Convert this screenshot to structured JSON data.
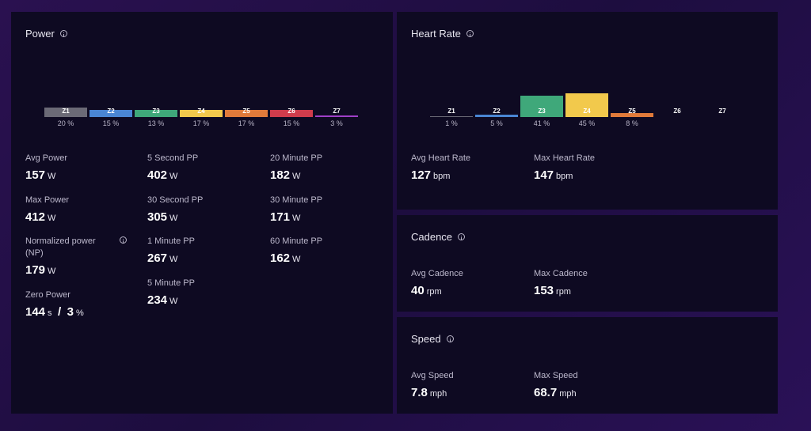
{
  "power": {
    "title": "Power",
    "zones": [
      {
        "label": "Z1",
        "pct": "20 %",
        "color": "#6b6a76"
      },
      {
        "label": "Z2",
        "pct": "15 %",
        "color": "#4a86d4"
      },
      {
        "label": "Z3",
        "pct": "13 %",
        "color": "#3fa87a"
      },
      {
        "label": "Z4",
        "pct": "17 %",
        "color": "#f2c94c"
      },
      {
        "label": "Z5",
        "pct": "17 %",
        "color": "#e07a3a"
      },
      {
        "label": "Z6",
        "pct": "15 %",
        "color": "#d03c4c"
      },
      {
        "label": "Z7",
        "pct": "3 %",
        "color": "#a040c8"
      }
    ],
    "stats": {
      "avg_power": {
        "label": "Avg Power",
        "value": "157",
        "unit": "W"
      },
      "max_power": {
        "label": "Max Power",
        "value": "412",
        "unit": "W"
      },
      "np": {
        "label": "Normalized power (NP)",
        "value": "179",
        "unit": "W"
      },
      "zero_power": {
        "label": "Zero Power",
        "value": "144",
        "unit": "s",
        "sep": "/",
        "value2": "3",
        "unit2": "%"
      },
      "pp_5s": {
        "label": "5 Second PP",
        "value": "402",
        "unit": "W"
      },
      "pp_30s": {
        "label": "30 Second PP",
        "value": "305",
        "unit": "W"
      },
      "pp_1m": {
        "label": "1 Minute PP",
        "value": "267",
        "unit": "W"
      },
      "pp_5m": {
        "label": "5 Minute PP",
        "value": "234",
        "unit": "W"
      },
      "pp_20m": {
        "label": "20 Minute PP",
        "value": "182",
        "unit": "W"
      },
      "pp_30m": {
        "label": "30 Minute PP",
        "value": "171",
        "unit": "W"
      },
      "pp_60m": {
        "label": "60 Minute PP",
        "value": "162",
        "unit": "W"
      }
    }
  },
  "heart_rate": {
    "title": "Heart Rate",
    "zones": [
      {
        "label": "Z1",
        "pct": "1 %",
        "value": 1,
        "color": "#6b6a76"
      },
      {
        "label": "Z2",
        "pct": "5 %",
        "value": 5,
        "color": "#4a86d4"
      },
      {
        "label": "Z3",
        "pct": "41 %",
        "value": 41,
        "color": "#3fa87a"
      },
      {
        "label": "Z4",
        "pct": "45 %",
        "value": 45,
        "color": "#f2c94c"
      },
      {
        "label": "Z5",
        "pct": "8 %",
        "value": 8,
        "color": "#e07a3a"
      },
      {
        "label": "Z6",
        "pct": "",
        "value": 0,
        "color": "#d03c4c"
      },
      {
        "label": "Z7",
        "pct": "",
        "value": 0,
        "color": "#a040c8"
      }
    ],
    "stats": {
      "avg_hr": {
        "label": "Avg Heart Rate",
        "value": "127",
        "unit": "bpm"
      },
      "max_hr": {
        "label": "Max Heart Rate",
        "value": "147",
        "unit": "bpm"
      }
    }
  },
  "cadence": {
    "title": "Cadence",
    "stats": {
      "avg": {
        "label": "Avg Cadence",
        "value": "40",
        "unit": "rpm"
      },
      "max": {
        "label": "Max Cadence",
        "value": "153",
        "unit": "rpm"
      }
    }
  },
  "speed": {
    "title": "Speed",
    "stats": {
      "avg": {
        "label": "Avg Speed",
        "value": "7.8",
        "unit": "mph"
      },
      "max": {
        "label": "Max Speed",
        "value": "68.7",
        "unit": "mph"
      }
    }
  }
}
